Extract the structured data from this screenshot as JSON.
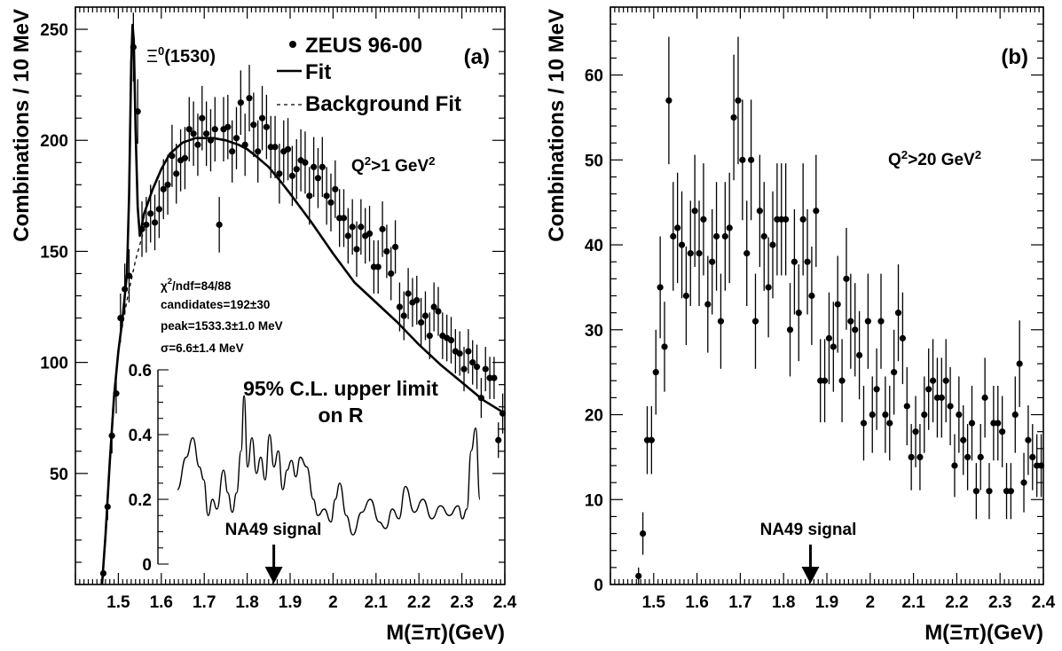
{
  "chart_data": [
    {
      "type": "scatter",
      "panel_label": "(a)",
      "xlabel": "M(Ξπ)(GeV)",
      "ylabel": "Combinations / 10 MeV",
      "xlim": [
        1.4,
        2.4
      ],
      "ylim": [
        0,
        260
      ],
      "xticks": [
        "1.5",
        "1.6",
        "1.7",
        "1.8",
        "1.9",
        "2",
        "2.1",
        "2.2",
        "2.3",
        "2.4"
      ],
      "yticks": [
        "50",
        "100",
        "150",
        "200",
        "250"
      ],
      "legend": {
        "placement": "top-right",
        "entries": [
          "ZEUS 96-00",
          "Fit",
          "Background Fit"
        ]
      },
      "annotations": {
        "peak_label": "Ξ⁰(1530)",
        "q2": "Q²>1 GeV²",
        "chi2": "χ²/ndf=84/88",
        "candidates": "candidates=192±30",
        "peak": "peak=1533.3±1.0 MeV",
        "sigma": "σ=6.6±1.4 MeV",
        "na49": "NA49 signal",
        "na49_mass": 1.862
      },
      "series": [
        {
          "name": "ZEUS 96-00",
          "x": [
            1.465,
            1.475,
            1.485,
            1.495,
            1.505,
            1.515,
            1.525,
            1.535,
            1.545,
            1.555,
            1.565,
            1.575,
            1.585,
            1.595,
            1.605,
            1.615,
            1.625,
            1.635,
            1.645,
            1.655,
            1.665,
            1.675,
            1.685,
            1.695,
            1.705,
            1.715,
            1.725,
            1.735,
            1.745,
            1.755,
            1.765,
            1.775,
            1.785,
            1.795,
            1.805,
            1.815,
            1.825,
            1.835,
            1.845,
            1.855,
            1.865,
            1.875,
            1.885,
            1.895,
            1.905,
            1.915,
            1.925,
            1.935,
            1.945,
            1.955,
            1.965,
            1.975,
            1.985,
            1.995,
            2.005,
            2.015,
            2.025,
            2.035,
            2.045,
            2.055,
            2.065,
            2.075,
            2.085,
            2.095,
            2.105,
            2.115,
            2.125,
            2.135,
            2.145,
            2.155,
            2.165,
            2.175,
            2.185,
            2.195,
            2.205,
            2.215,
            2.225,
            2.235,
            2.245,
            2.255,
            2.265,
            2.275,
            2.285,
            2.295,
            2.305,
            2.315,
            2.325,
            2.335,
            2.345,
            2.355,
            2.365,
            2.375,
            2.385,
            2.395
          ],
          "y": [
            5,
            35,
            67,
            86,
            120,
            133,
            139,
            242,
            213,
            160,
            162,
            167,
            163,
            169,
            178,
            180,
            193,
            185,
            191,
            192,
            205,
            203,
            198,
            210,
            203,
            200,
            205,
            162,
            205,
            206,
            195,
            201,
            217,
            198,
            219,
            207,
            195,
            210,
            206,
            197,
            197,
            185,
            195,
            196,
            184,
            187,
            191,
            190,
            175,
            188,
            183,
            188,
            175,
            172,
            178,
            165,
            165,
            157,
            161,
            151,
            161,
            157,
            158,
            143,
            143,
            160,
            150,
            140,
            152,
            125,
            121,
            131,
            127,
            128,
            118,
            121,
            112,
            125,
            123,
            112,
            111,
            110,
            105,
            104,
            97,
            105,
            100,
            98,
            84,
            97,
            93,
            93,
            65,
            77
          ],
          "yerr": [
            2,
            6,
            8,
            9,
            11,
            11.5,
            12,
            15.5,
            14.5,
            12.5,
            12.5,
            13,
            12.5,
            13,
            13.5,
            13.5,
            14,
            13.5,
            14,
            14,
            14.5,
            14.5,
            14,
            14.5,
            14.5,
            14,
            14.5,
            12.5,
            14.5,
            14.5,
            14,
            14,
            14.5,
            14,
            15,
            14.5,
            14,
            14.5,
            14.5,
            14,
            14,
            13.5,
            14,
            14,
            13.5,
            13.5,
            14,
            14,
            13,
            13.5,
            13.5,
            13.5,
            13,
            13,
            13,
            13,
            13,
            12.5,
            12.5,
            12.5,
            12.5,
            12.5,
            12.5,
            12,
            12,
            12.5,
            12,
            12,
            12,
            11,
            11,
            11.5,
            11,
            11,
            11,
            11,
            10.5,
            11,
            11,
            10.5,
            10.5,
            10.5,
            10,
            10,
            10,
            10,
            10,
            10,
            9,
            10,
            9.5,
            9.5,
            8,
            9
          ]
        }
      ],
      "fit": {
        "name": "Fit",
        "x": [
          1.462,
          1.47,
          1.48,
          1.49,
          1.5,
          1.51,
          1.52,
          1.525,
          1.53,
          1.533,
          1.536,
          1.54,
          1.545,
          1.55,
          1.56,
          1.58,
          1.6,
          1.62,
          1.65,
          1.68,
          1.7,
          1.72,
          1.75,
          1.78,
          1.8,
          1.82,
          1.85,
          1.88,
          1.9,
          1.95,
          2,
          2.05,
          2.1,
          2.15,
          2.2,
          2.25,
          2.3,
          2.35,
          2.4
        ],
        "y": [
          0,
          22,
          55,
          85,
          105,
          120,
          140,
          175,
          235,
          252,
          245,
          205,
          170,
          157,
          167,
          178,
          187,
          194,
          199,
          201,
          201,
          201,
          200,
          198,
          196,
          193,
          188,
          181,
          176,
          163,
          149,
          136,
          127,
          118,
          108,
          99,
          91,
          83,
          77
        ]
      },
      "background_fit": {
        "name": "Background Fit",
        "x": [
          1.5,
          1.52,
          1.54,
          1.56
        ],
        "y": [
          106,
          128,
          146,
          160
        ]
      },
      "inset": {
        "title": "95% C.L. upper limit on R",
        "yticks": [
          "0",
          "0.2",
          "0.4",
          "0.6"
        ],
        "ylim": [
          0,
          0.6
        ],
        "xlim": [
          1.65,
          2.34
        ],
        "x": [
          1.65,
          1.67,
          1.685,
          1.7,
          1.71,
          1.72,
          1.73,
          1.74,
          1.755,
          1.765,
          1.775,
          1.785,
          1.795,
          1.802,
          1.81,
          1.82,
          1.83,
          1.84,
          1.85,
          1.86,
          1.87,
          1.88,
          1.89,
          1.9,
          1.91,
          1.92,
          1.93,
          1.945,
          1.96,
          1.97,
          1.985,
          2.0,
          2.01,
          2.02,
          2.035,
          2.05,
          2.07,
          2.09,
          2.11,
          2.125,
          2.14,
          2.155,
          2.17,
          2.19,
          2.21,
          2.23,
          2.25,
          2.27,
          2.29,
          2.3,
          2.31,
          2.32,
          2.33,
          2.34
        ],
        "y": [
          0.23,
          0.33,
          0.39,
          0.3,
          0.26,
          0.15,
          0.2,
          0.17,
          0.29,
          0.22,
          0.16,
          0.22,
          0.35,
          0.52,
          0.3,
          0.39,
          0.28,
          0.33,
          0.26,
          0.4,
          0.3,
          0.35,
          0.23,
          0.29,
          0.32,
          0.27,
          0.33,
          0.3,
          0.2,
          0.15,
          0.17,
          0.13,
          0.2,
          0.25,
          0.15,
          0.09,
          0.16,
          0.2,
          0.13,
          0.11,
          0.17,
          0.14,
          0.24,
          0.16,
          0.2,
          0.14,
          0.18,
          0.15,
          0.18,
          0.14,
          0.17,
          0.35,
          0.42,
          0.2
        ]
      }
    },
    {
      "type": "scatter",
      "panel_label": "(b)",
      "xlabel": "M(Ξπ)(GeV)",
      "ylabel": "Combinations / 10 MeV",
      "xlim": [
        1.4,
        2.4
      ],
      "ylim": [
        0,
        68
      ],
      "xticks": [
        "1.5",
        "1.6",
        "1.7",
        "1.8",
        "1.9",
        "2",
        "2.1",
        "2.2",
        "2.3",
        "2.4"
      ],
      "yticks": [
        "0",
        "10",
        "20",
        "30",
        "40",
        "50",
        "60"
      ],
      "annotations": {
        "q2": "Q²>20 GeV²",
        "na49": "NA49 signal",
        "na49_mass": 1.862
      },
      "series": [
        {
          "name": "",
          "x": [
            1.465,
            1.475,
            1.485,
            1.495,
            1.505,
            1.515,
            1.525,
            1.535,
            1.545,
            1.555,
            1.565,
            1.575,
            1.585,
            1.595,
            1.605,
            1.615,
            1.625,
            1.635,
            1.645,
            1.655,
            1.665,
            1.675,
            1.685,
            1.695,
            1.705,
            1.715,
            1.725,
            1.735,
            1.745,
            1.755,
            1.765,
            1.775,
            1.785,
            1.795,
            1.805,
            1.815,
            1.825,
            1.835,
            1.845,
            1.855,
            1.865,
            1.875,
            1.885,
            1.895,
            1.905,
            1.915,
            1.925,
            1.935,
            1.945,
            1.955,
            1.965,
            1.975,
            1.985,
            1.995,
            2.005,
            2.015,
            2.025,
            2.035,
            2.045,
            2.055,
            2.065,
            2.075,
            2.085,
            2.095,
            2.105,
            2.115,
            2.125,
            2.135,
            2.145,
            2.155,
            2.165,
            2.175,
            2.185,
            2.195,
            2.205,
            2.215,
            2.225,
            2.235,
            2.245,
            2.255,
            2.265,
            2.275,
            2.285,
            2.295,
            2.305,
            2.315,
            2.325,
            2.335,
            2.345,
            2.355,
            2.365,
            2.375,
            2.385,
            2.395
          ],
          "y": [
            1,
            6,
            17,
            17,
            25,
            35,
            28,
            57,
            41,
            42,
            40,
            34,
            39,
            44,
            39,
            43,
            33,
            38,
            41,
            31,
            41,
            42,
            55,
            57,
            50,
            39,
            50,
            31,
            44,
            41,
            35,
            40,
            43,
            43,
            43,
            30,
            38,
            32,
            43,
            38,
            34,
            44,
            24,
            24,
            29,
            28,
            33,
            24,
            36,
            31,
            30,
            27,
            19,
            31,
            20,
            23,
            31,
            20,
            19,
            25,
            32,
            29,
            21,
            15,
            18,
            15,
            20,
            23,
            24,
            22,
            22,
            24,
            21,
            14,
            20,
            17,
            15,
            19,
            11,
            15,
            22,
            11,
            19,
            19,
            18,
            11,
            11,
            20,
            26,
            12,
            17,
            15,
            14,
            14
          ],
          "yerr": [
            1,
            2.5,
            4,
            4,
            5,
            6,
            5.3,
            7.5,
            6.4,
            6.5,
            6.3,
            5.8,
            6.2,
            6.6,
            6.2,
            6.6,
            5.7,
            6.2,
            6.4,
            5.6,
            6.4,
            6.5,
            7.4,
            7.5,
            7.1,
            6.2,
            7.1,
            5.6,
            6.6,
            6.4,
            5.9,
            6.3,
            6.6,
            6.6,
            6.6,
            5.5,
            6.2,
            5.7,
            6.6,
            6.2,
            5.8,
            6.6,
            4.9,
            4.9,
            5.4,
            5.3,
            5.7,
            4.9,
            6,
            5.6,
            5.5,
            5.2,
            4.4,
            5.6,
            4.5,
            4.8,
            5.6,
            4.5,
            4.4,
            5,
            5.7,
            5.4,
            4.6,
            3.9,
            4.2,
            3.9,
            4.5,
            4.8,
            4.9,
            4.7,
            4.7,
            4.9,
            4.6,
            3.7,
            4.5,
            4.1,
            3.9,
            4.4,
            3.3,
            3.9,
            4.7,
            3.3,
            4.4,
            4.4,
            4.2,
            3.3,
            3.3,
            4.5,
            5.1,
            3.5,
            4.1,
            3.9,
            3.7,
            3.7
          ]
        }
      ]
    }
  ]
}
